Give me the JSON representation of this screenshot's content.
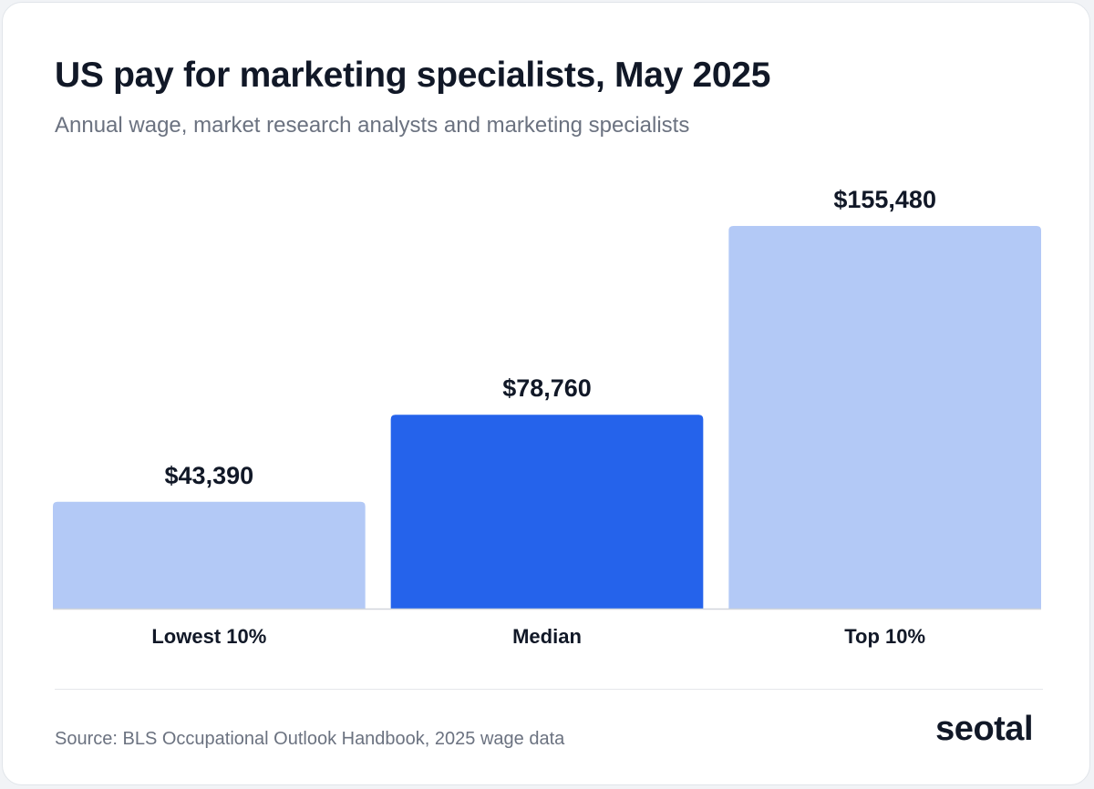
{
  "header": {
    "title": "US pay for marketing specialists, May 2025",
    "subtitle": "Annual wage, market research analysts and marketing specialists"
  },
  "footer": {
    "source": "Source: BLS Occupational Outlook Handbook, 2025 wage data",
    "logo": "seotal"
  },
  "colors": {
    "bar_default": "#b3c9f6",
    "bar_highlight": "#2563eb",
    "text_dark": "#111827",
    "axis": "#d1d5db"
  },
  "chart_data": {
    "type": "bar",
    "title": "US pay for marketing specialists, May 2025",
    "subtitle": "Annual wage, market research analysts and marketing specialists",
    "categories": [
      "Lowest 10%",
      "Median",
      "Top 10%"
    ],
    "values": [
      43390,
      78760,
      155480
    ],
    "value_labels": [
      "$43,390",
      "$78,760",
      "$155,480"
    ],
    "highlight_index": 1,
    "ylim": [
      0,
      155480
    ],
    "grid": false,
    "legend": "none"
  }
}
